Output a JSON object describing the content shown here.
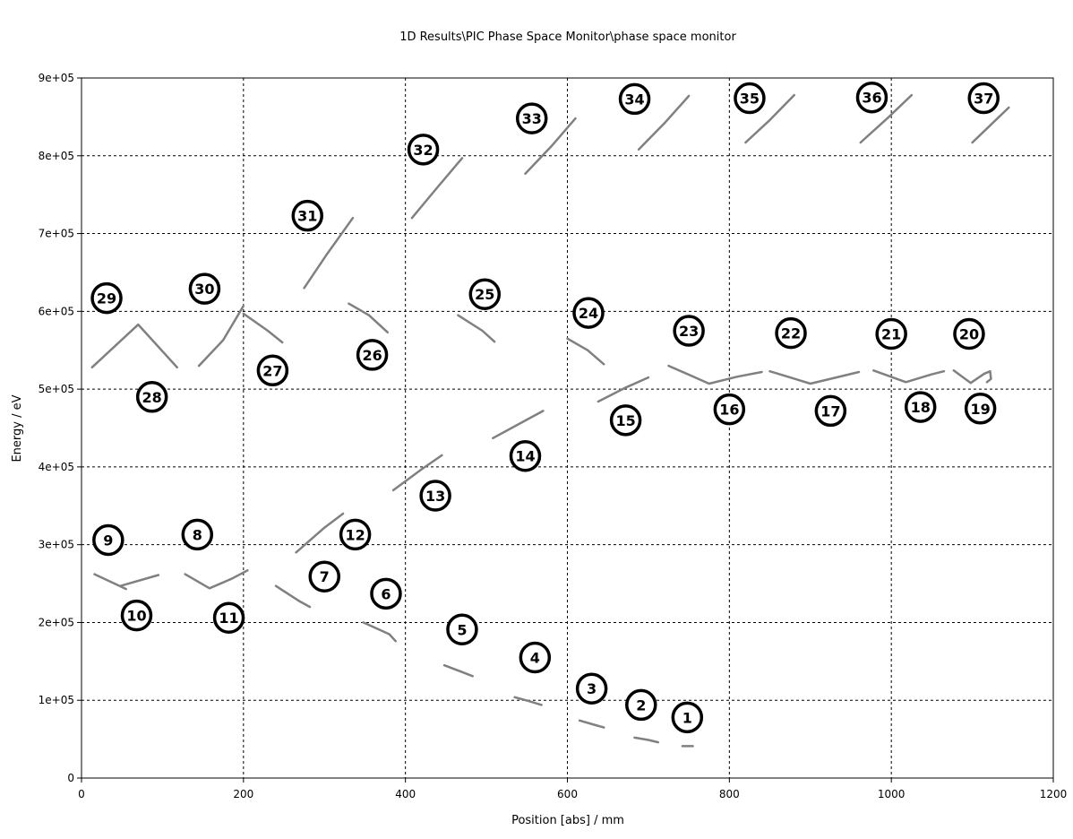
{
  "chart_data": {
    "type": "scatter",
    "title": "1D Results\\PIC Phase Space Monitor\\phase space monitor",
    "xlabel": "Position [abs]  / mm",
    "ylabel": "Energy / eV",
    "xlim": [
      0,
      1200
    ],
    "ylim": [
      0,
      900000
    ],
    "xticks": [
      0,
      200,
      400,
      600,
      800,
      1000,
      1200
    ],
    "yticks": [
      0,
      100000,
      200000,
      300000,
      400000,
      500000,
      600000,
      700000,
      800000,
      900000
    ],
    "xtick_labels": [
      "0",
      "200",
      "400",
      "600",
      "800",
      "1000",
      "1200"
    ],
    "ytick_labels": [
      "0",
      "1e+05",
      "2e+05",
      "3e+05",
      "4e+05",
      "5e+05",
      "6e+05",
      "7e+05",
      "8e+05",
      "9e+05"
    ],
    "grid": true,
    "series_color": "#808080",
    "segments": [
      {
        "points": [
          [
            742,
            41000
          ],
          [
            755,
            41000
          ]
        ]
      },
      {
        "points": [
          [
            683,
            52000
          ],
          [
            700,
            49000
          ],
          [
            712,
            46000
          ]
        ]
      },
      {
        "points": [
          [
            615,
            74000
          ],
          [
            635,
            68000
          ],
          [
            645,
            65000
          ]
        ]
      },
      {
        "points": [
          [
            535,
            104000
          ],
          [
            552,
            99000
          ],
          [
            568,
            94000
          ]
        ]
      },
      {
        "points": [
          [
            448,
            145000
          ],
          [
            468,
            137000
          ],
          [
            483,
            131000
          ]
        ]
      },
      {
        "points": [
          [
            348,
            200000
          ],
          [
            380,
            185000
          ],
          [
            388,
            176000
          ]
        ]
      },
      {
        "points": [
          [
            240,
            247000
          ],
          [
            268,
            228000
          ],
          [
            282,
            220000
          ]
        ]
      },
      {
        "points": [
          [
            128,
            262000
          ],
          [
            158,
            244000
          ],
          [
            185,
            256000
          ],
          [
            205,
            267000
          ]
        ]
      },
      {
        "points": [
          [
            16,
            262000
          ],
          [
            55,
            243000
          ]
        ]
      },
      {
        "points": [
          [
            48,
            247000
          ],
          [
            95,
            261000
          ]
        ]
      },
      {
        "points": [
          [
            265,
            290000
          ],
          [
            300,
            322000
          ],
          [
            323,
            340000
          ]
        ]
      },
      {
        "points": [
          [
            385,
            370000
          ],
          [
            420,
            397000
          ],
          [
            445,
            415000
          ]
        ]
      },
      {
        "points": [
          [
            508,
            437000
          ],
          [
            545,
            458000
          ],
          [
            570,
            472000
          ]
        ]
      },
      {
        "points": [
          [
            638,
            484000
          ],
          [
            670,
            501000
          ],
          [
            700,
            515000
          ]
        ]
      },
      {
        "points": [
          [
            725,
            530000
          ],
          [
            775,
            507000
          ],
          [
            810,
            516000
          ],
          [
            840,
            522000
          ]
        ]
      },
      {
        "points": [
          [
            850,
            523000
          ],
          [
            900,
            507000
          ],
          [
            940,
            517000
          ],
          [
            960,
            522000
          ]
        ]
      },
      {
        "points": [
          [
            978,
            524000
          ],
          [
            1018,
            509000
          ],
          [
            1050,
            519000
          ],
          [
            1065,
            523000
          ]
        ]
      },
      {
        "points": [
          [
            1077,
            524000
          ],
          [
            1098,
            508000
          ],
          [
            1115,
            520000
          ],
          [
            1122,
            523000
          ],
          [
            1123,
            513000
          ],
          [
            1118,
            509000
          ]
        ]
      },
      {
        "points": [
          [
            600,
            565000
          ],
          [
            625,
            550000
          ],
          [
            645,
            532000
          ]
        ]
      },
      {
        "points": [
          [
            465,
            595000
          ],
          [
            495,
            575000
          ],
          [
            510,
            561000
          ]
        ]
      },
      {
        "points": [
          [
            330,
            610000
          ],
          [
            355,
            595000
          ],
          [
            378,
            573000
          ]
        ]
      },
      {
        "points": [
          [
            200,
            597000
          ],
          [
            230,
            575000
          ],
          [
            248,
            560000
          ]
        ]
      },
      {
        "points": [
          [
            13,
            528000
          ],
          [
            70,
            583000
          ],
          [
            118,
            528000
          ]
        ]
      },
      {
        "points": [
          [
            145,
            530000
          ],
          [
            175,
            563000
          ],
          [
            200,
            607000
          ]
        ]
      },
      {
        "points": [
          [
            275,
            630000
          ],
          [
            302,
            672000
          ],
          [
            335,
            720000
          ]
        ]
      },
      {
        "points": [
          [
            408,
            720000
          ],
          [
            440,
            760000
          ],
          [
            470,
            797000
          ]
        ]
      },
      {
        "points": [
          [
            548,
            777000
          ],
          [
            580,
            812000
          ],
          [
            610,
            848000
          ]
        ]
      },
      {
        "points": [
          [
            688,
            808000
          ],
          [
            720,
            842000
          ],
          [
            750,
            877000
          ]
        ]
      },
      {
        "points": [
          [
            820,
            817000
          ],
          [
            850,
            846000
          ],
          [
            880,
            878000
          ]
        ]
      },
      {
        "points": [
          [
            962,
            817000
          ],
          [
            995,
            848000
          ],
          [
            1025,
            878000
          ]
        ]
      },
      {
        "points": [
          [
            1100,
            817000
          ],
          [
            1125,
            842000
          ],
          [
            1145,
            862000
          ]
        ]
      }
    ],
    "annotations": [
      {
        "label": "1",
        "x": 748,
        "y": 78000
      },
      {
        "label": "2",
        "x": 691,
        "y": 94000
      },
      {
        "label": "3",
        "x": 630,
        "y": 115000
      },
      {
        "label": "4",
        "x": 560,
        "y": 155000
      },
      {
        "label": "5",
        "x": 470,
        "y": 191000
      },
      {
        "label": "6",
        "x": 376,
        "y": 237000
      },
      {
        "label": "7",
        "x": 300,
        "y": 259000
      },
      {
        "label": "8",
        "x": 143,
        "y": 313000
      },
      {
        "label": "9",
        "x": 33,
        "y": 306000
      },
      {
        "label": "10",
        "x": 68,
        "y": 209000
      },
      {
        "label": "11",
        "x": 182,
        "y": 206000
      },
      {
        "label": "12",
        "x": 338,
        "y": 313000
      },
      {
        "label": "13",
        "x": 437,
        "y": 363000
      },
      {
        "label": "14",
        "x": 548,
        "y": 414000
      },
      {
        "label": "15",
        "x": 672,
        "y": 460000
      },
      {
        "label": "16",
        "x": 800,
        "y": 474000
      },
      {
        "label": "17",
        "x": 925,
        "y": 472000
      },
      {
        "label": "18",
        "x": 1036,
        "y": 477000
      },
      {
        "label": "19",
        "x": 1110,
        "y": 475000
      },
      {
        "label": "20",
        "x": 1096,
        "y": 571000
      },
      {
        "label": "21",
        "x": 1000,
        "y": 571000
      },
      {
        "label": "22",
        "x": 876,
        "y": 572000
      },
      {
        "label": "23",
        "x": 750,
        "y": 575000
      },
      {
        "label": "24",
        "x": 626,
        "y": 598000
      },
      {
        "label": "25",
        "x": 498,
        "y": 622000
      },
      {
        "label": "26",
        "x": 359,
        "y": 544000
      },
      {
        "label": "27",
        "x": 236,
        "y": 524000
      },
      {
        "label": "28",
        "x": 87,
        "y": 490000
      },
      {
        "label": "29",
        "x": 31,
        "y": 617000
      },
      {
        "label": "30",
        "x": 152,
        "y": 629000
      },
      {
        "label": "31",
        "x": 279,
        "y": 723000
      },
      {
        "label": "32",
        "x": 422,
        "y": 808000
      },
      {
        "label": "33",
        "x": 556,
        "y": 848000
      },
      {
        "label": "34",
        "x": 683,
        "y": 873000
      },
      {
        "label": "35",
        "x": 825,
        "y": 874000
      },
      {
        "label": "36",
        "x": 976,
        "y": 875000
      },
      {
        "label": "37",
        "x": 1114,
        "y": 874000
      }
    ]
  }
}
